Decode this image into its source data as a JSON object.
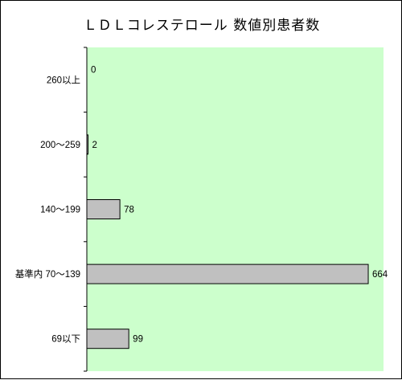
{
  "chart_data": {
    "type": "bar",
    "orientation": "horizontal",
    "title": "ＬＤＬコレステロール 数値別患者数",
    "categories": [
      "260以上",
      "200～259",
      "140～199",
      "基準内 70～139",
      "69以下"
    ],
    "values": [
      0,
      2,
      78,
      664,
      99
    ],
    "xlim": [
      0,
      700
    ],
    "grid": false,
    "legend": "none",
    "colors": {
      "plot_background": "#ccffcc",
      "bar_fill": "#c0c0c0",
      "bar_stroke": "#000000",
      "axis": "#000000",
      "frame": "#000000"
    }
  }
}
